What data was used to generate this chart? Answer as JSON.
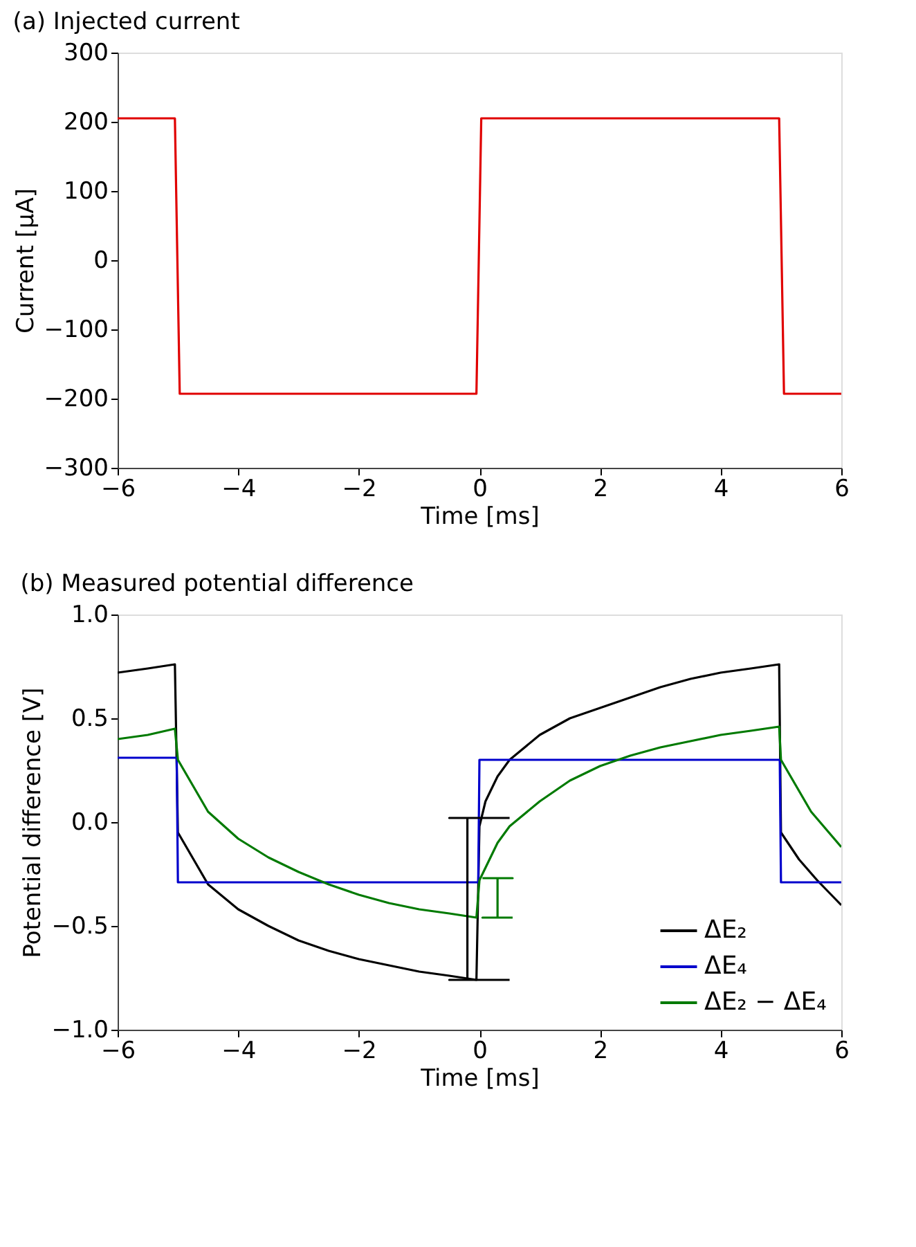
{
  "chart_data": [
    {
      "type": "line",
      "title": "(a) Injected current",
      "xlabel": "Time [ms]",
      "ylabel": "Current [μA]",
      "xlim": [
        -6,
        6
      ],
      "xticks": [
        -6,
        -4,
        -2,
        0,
        2,
        4,
        6
      ],
      "ylim": [
        -300,
        300
      ],
      "yticks": [
        -300,
        -200,
        -100,
        0,
        100,
        200,
        300
      ],
      "grid": false,
      "x": [
        -6,
        -5.5,
        -5.05,
        -4.97,
        -4.5,
        -3,
        -1.5,
        -0.05,
        0.03,
        1,
        2.5,
        4,
        4.97,
        5.05,
        5.5,
        6
      ],
      "series": [
        {
          "color": "#e00000",
          "values": [
            205,
            205,
            205,
            -193,
            -193,
            -193,
            -193,
            -193,
            205,
            205,
            205,
            205,
            205,
            -193,
            -193,
            -193
          ]
        }
      ]
    },
    {
      "type": "line",
      "title": "(b) Measured potential difference",
      "xlabel": "Time [ms]",
      "ylabel": "Potential difference [V]",
      "xlim": [
        -6,
        6
      ],
      "xticks": [
        -6,
        -4,
        -2,
        0,
        2,
        4,
        6
      ],
      "ylim": [
        -1.0,
        1.0
      ],
      "yticks": [
        {
          "value": -1,
          "label": "−1.0"
        },
        -0.5,
        {
          "value": 0,
          "label": "0.0"
        },
        0.5,
        {
          "value": 1,
          "label": "1.0"
        }
      ],
      "grid": false,
      "legend": "bottom right",
      "series": [
        {
          "name": "ΔE₂",
          "color": "#000000",
          "x": [
            -6,
            -5.5,
            -5.05,
            -5.0,
            -4.7,
            -4.5,
            -4,
            -3.5,
            -3,
            -2.5,
            -2,
            -1.5,
            -1,
            -0.5,
            -0.05,
            0.0,
            0.1,
            0.3,
            0.5,
            1,
            1.5,
            2,
            2.5,
            3,
            3.5,
            4,
            4.5,
            4.97,
            5.0,
            5.3,
            5.6,
            6
          ],
          "values": [
            0.72,
            0.74,
            0.76,
            -0.05,
            -0.2,
            -0.3,
            -0.42,
            -0.5,
            -0.57,
            -0.62,
            -0.66,
            -0.69,
            -0.72,
            -0.74,
            -0.76,
            -0.02,
            0.1,
            0.22,
            0.3,
            0.42,
            0.5,
            0.55,
            0.6,
            0.65,
            0.69,
            0.72,
            0.74,
            0.76,
            -0.05,
            -0.18,
            -0.28,
            -0.4
          ]
        },
        {
          "name": "ΔE₄",
          "color": "#0000cc",
          "x": [
            -6,
            -5.02,
            -5.0,
            -0.02,
            0.0,
            4.98,
            5.0,
            6
          ],
          "values": [
            0.31,
            0.31,
            -0.29,
            -0.29,
            0.3,
            0.3,
            -0.29,
            -0.29
          ]
        },
        {
          "name": "ΔE₂ − ΔE₄",
          "color": "#007a00",
          "x": [
            -6,
            -5.5,
            -5.05,
            -5.0,
            -4.5,
            -4,
            -3.5,
            -3,
            -2.5,
            -2,
            -1.5,
            -1,
            -0.5,
            -0.05,
            0.0,
            0.3,
            0.5,
            1,
            1.5,
            2,
            2.5,
            3,
            3.5,
            4,
            4.5,
            4.97,
            5.0,
            5.5,
            6
          ],
          "values": [
            0.4,
            0.42,
            0.45,
            0.3,
            0.05,
            -0.08,
            -0.17,
            -0.24,
            -0.3,
            -0.35,
            -0.39,
            -0.42,
            -0.44,
            -0.46,
            -0.28,
            -0.1,
            -0.02,
            0.1,
            0.2,
            0.27,
            0.32,
            0.36,
            0.39,
            0.42,
            0.44,
            0.46,
            0.3,
            0.05,
            -0.12
          ]
        },
        {
          "color": "#000000",
          "x": [
            0.5,
            -0.5,
            -0.2,
            -0.2,
            -0.5,
            0.5
          ],
          "values": [
            0.02,
            0.02,
            0.02,
            -0.76,
            -0.76,
            -0.76
          ]
        },
        {
          "color": "#007a00",
          "x": [
            0.05,
            0.55,
            0.3,
            0.3,
            0.05,
            0.55
          ],
          "values": [
            -0.27,
            -0.27,
            -0.27,
            -0.46,
            -0.46,
            -0.46
          ]
        }
      ]
    }
  ]
}
